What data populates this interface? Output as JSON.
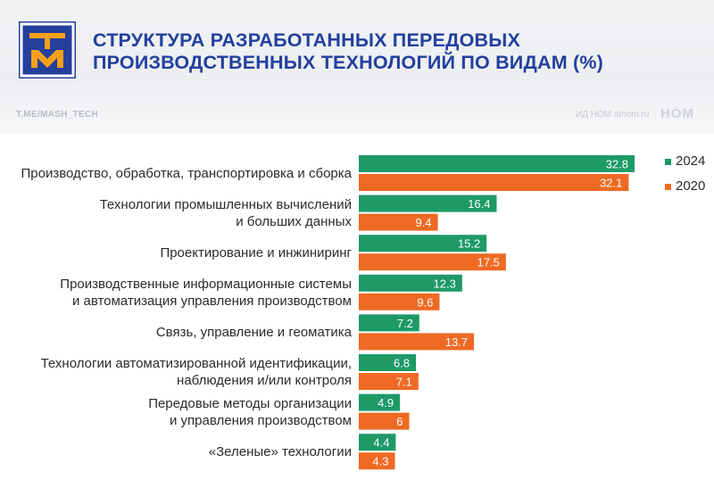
{
  "header": {
    "title_line1": "СТРУКТУРА РАЗРАБОТАННЫХ ПЕРЕДОВЫХ",
    "title_line2": "ПРОИЗВОДСТВЕННЫХ ТЕХНОЛОГИЙ ПО ВИДАМ (%)",
    "channel": "T.ME/MASH_TECH",
    "source": "ИД НОМ atnom.ru",
    "brand": "НОМ"
  },
  "colors": {
    "series_2024": "#1e9a67",
    "series_2020": "#ee6a24",
    "title": "#22409e",
    "logo_bg": "#243f9c",
    "logo_accent": "#f5a01a"
  },
  "chart_data": {
    "type": "bar",
    "orientation": "horizontal",
    "categories": [
      [
        "Производство, обработка, транспортировка и сборка"
      ],
      [
        "Технологии промышленных вычислений",
        "и больших данных"
      ],
      [
        "Проектирование и инжиниринг"
      ],
      [
        "Производственные информационные системы",
        "и автоматизация управления производством"
      ],
      [
        "Связь, управление и геоматика"
      ],
      [
        "Технологии автоматизированной идентификации,",
        "наблюдения и/или контроля"
      ],
      [
        "Передовые методы организации",
        "и управления производством"
      ],
      [
        "«Зеленые» технологии"
      ]
    ],
    "series": [
      {
        "name": "2024",
        "color": "#1e9a67",
        "values": [
          32.8,
          16.4,
          15.2,
          12.3,
          7.2,
          6.8,
          4.9,
          4.4
        ],
        "labels": [
          "32.8",
          "16.4",
          "15.2",
          "12.3",
          "7.2",
          "6.8",
          "4.9",
          "4.4"
        ]
      },
      {
        "name": "2020",
        "color": "#ee6a24",
        "values": [
          32.1,
          9.4,
          17.5,
          9.6,
          13.7,
          7.1,
          6,
          4.3
        ],
        "labels": [
          "32.1",
          "9.4",
          "17.5",
          "9.6",
          "13.7",
          "7.1",
          "6",
          "4.3"
        ]
      }
    ],
    "xlim": [
      0,
      33
    ],
    "grid": false,
    "legend_position": "top-right"
  }
}
